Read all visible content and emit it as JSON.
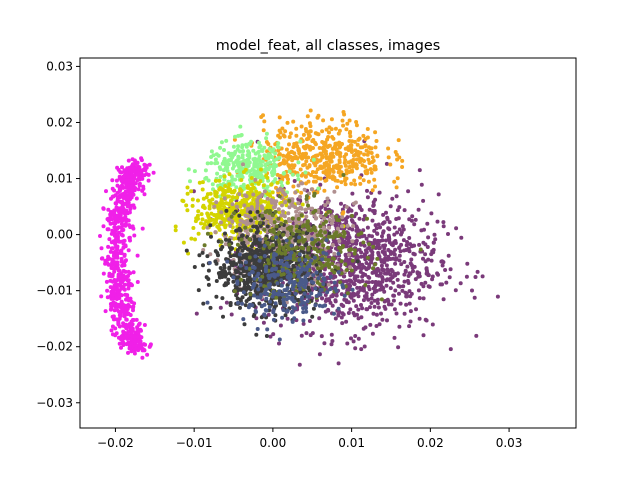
{
  "chart_data": {
    "type": "scatter",
    "title": "model_feat, all classes, images",
    "xlabel": "",
    "ylabel": "",
    "xlim": [
      -0.0245,
      0.0385
    ],
    "ylim": [
      -0.0345,
      0.0315
    ],
    "xticks": [
      -0.02,
      -0.01,
      0.0,
      0.01,
      0.02,
      0.03
    ],
    "xtick_labels": [
      "−0.02",
      "−0.01",
      "0.00",
      "0.01",
      "0.02",
      "0.03"
    ],
    "yticks": [
      -0.03,
      -0.02,
      -0.01,
      0.0,
      0.01,
      0.02,
      0.03
    ],
    "ytick_labels": [
      "−0.03",
      "−0.02",
      "−0.01",
      "0.00",
      "0.01",
      "0.02",
      "0.03"
    ],
    "grid": false,
    "legend": "none",
    "series": [
      {
        "color": "#f020e8",
        "shape": "arc",
        "center": [
          -0.0165,
          -0.004
        ],
        "spread": [
          0.004,
          0.017
        ],
        "count": 700
      },
      {
        "color": "#7a3a7a",
        "center": [
          0.0095,
          -0.005
        ],
        "spread": [
          0.0105,
          0.011
        ],
        "count": 1100
      },
      {
        "color": "#f5a623",
        "center": [
          0.0065,
          0.014
        ],
        "spread": [
          0.007,
          0.006
        ],
        "count": 450
      },
      {
        "color": "#90f890",
        "center": [
          -0.003,
          0.012
        ],
        "spread": [
          0.005,
          0.004
        ],
        "count": 300
      },
      {
        "color": "#d4d400",
        "center": [
          -0.004,
          0.004
        ],
        "spread": [
          0.0055,
          0.005
        ],
        "count": 500
      },
      {
        "color": "#b09090",
        "center": [
          0.001,
          0.0
        ],
        "spread": [
          0.007,
          0.0075
        ],
        "count": 500
      },
      {
        "color": "#3c3c3c",
        "center": [
          -0.001,
          -0.006
        ],
        "spread": [
          0.006,
          0.0065
        ],
        "count": 700
      },
      {
        "color": "#6b7a2a",
        "center": [
          0.004,
          -0.003
        ],
        "spread": [
          0.0075,
          0.0075
        ],
        "count": 300
      },
      {
        "color": "#4a5a8a",
        "center": [
          0.002,
          -0.009
        ],
        "spread": [
          0.006,
          0.006
        ],
        "count": 250
      }
    ]
  }
}
